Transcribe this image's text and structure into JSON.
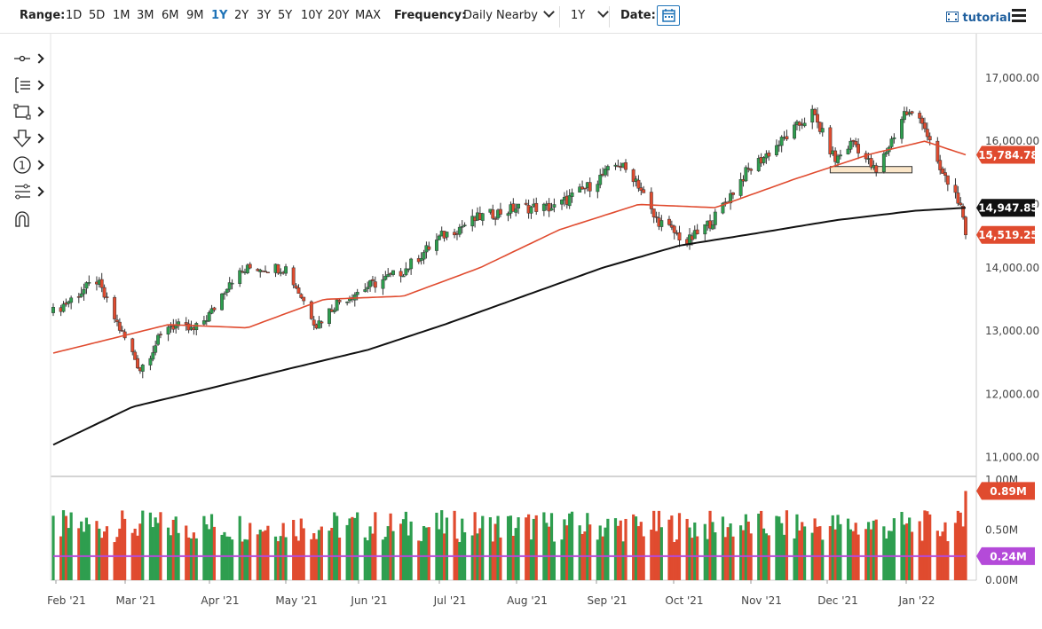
{
  "toolbar": {
    "range_label": "Range:",
    "ranges": [
      "1D",
      "5D",
      "1M",
      "3M",
      "6M",
      "9M",
      "1Y",
      "2Y",
      "3Y",
      "5Y",
      "10Y",
      "20Y",
      "MAX"
    ],
    "active_range": "1Y",
    "frequency_label": "Frequency:",
    "frequency_value": "Daily Nearby",
    "period_value": "1Y",
    "date_label": "Date:",
    "tutorial_label": "tutorial"
  },
  "tools": [
    "crosshair-icon",
    "trend-lines-icon",
    "shapes-icon",
    "arrow-down-icon",
    "counter-icon",
    "fibonacci-icon",
    "magnet-icon"
  ],
  "chart_data": {
    "type": "candlestick",
    "x_labels": [
      "Feb '21",
      "Mar '21",
      "Apr '21",
      "May '21",
      "Jun '21",
      "Jul '21",
      "Aug '21",
      "Sep '21",
      "Oct '21",
      "Nov '21",
      "Dec '21",
      "Jan '22"
    ],
    "price_axis": {
      "ylim": [
        10700,
        17700
      ],
      "ticks": [
        "17,000.00",
        "16,000.00",
        "15,000.00",
        "14,000.00",
        "13,000.00",
        "12,000.00",
        "11,000.00"
      ],
      "tick_values": [
        17000,
        16000,
        15000,
        14000,
        13000,
        12000,
        11000
      ]
    },
    "volume_axis": {
      "ylim": [
        0,
        1.0
      ],
      "ticks": [
        "1.00M",
        "0.50M",
        "0.00M"
      ],
      "tick_values": [
        1.0,
        0.5,
        0.0
      ]
    },
    "price_anchors": [
      [
        "2021-01-29",
        13300
      ],
      [
        "2021-02-05",
        13500
      ],
      [
        "2021-02-15",
        13800
      ],
      [
        "2021-02-22",
        13200
      ],
      [
        "2021-03-04",
        12400
      ],
      [
        "2021-03-15",
        13100
      ],
      [
        "2021-03-25",
        13000
      ],
      [
        "2021-04-01",
        13300
      ],
      [
        "2021-04-08",
        13800
      ],
      [
        "2021-04-16",
        14000
      ],
      [
        "2021-04-30",
        14000
      ],
      [
        "2021-05-12",
        13100
      ],
      [
        "2021-05-20",
        13450
      ],
      [
        "2021-06-01",
        13700
      ],
      [
        "2021-06-15",
        13950
      ],
      [
        "2021-06-30",
        14500
      ],
      [
        "2021-07-15",
        14800
      ],
      [
        "2021-07-30",
        14950
      ],
      [
        "2021-08-13",
        14950
      ],
      [
        "2021-08-27",
        15300
      ],
      [
        "2021-09-07",
        15650
      ],
      [
        "2021-09-14",
        15400
      ],
      [
        "2021-09-21",
        14800
      ],
      [
        "2021-10-04",
        14400
      ],
      [
        "2021-10-14",
        14750
      ],
      [
        "2021-10-27",
        15500
      ],
      [
        "2021-11-10",
        16000
      ],
      [
        "2021-11-22",
        16450
      ],
      [
        "2021-12-01",
        15700
      ],
      [
        "2021-12-08",
        16000
      ],
      [
        "2021-12-17",
        15500
      ],
      [
        "2021-12-28",
        16450
      ],
      [
        "2022-01-04",
        16350
      ],
      [
        "2022-01-10",
        15600
      ],
      [
        "2022-01-18",
        15100
      ],
      [
        "2022-01-21",
        14519
      ]
    ],
    "ma_50_anchors": [
      [
        "2021-01-29",
        12650
      ],
      [
        "2021-03-15",
        13100
      ],
      [
        "2021-04-15",
        13050
      ],
      [
        "2021-05-15",
        13500
      ],
      [
        "2021-06-15",
        13550
      ],
      [
        "2021-07-15",
        14000
      ],
      [
        "2021-08-15",
        14600
      ],
      [
        "2021-09-15",
        15000
      ],
      [
        "2021-10-15",
        14950
      ],
      [
        "2021-11-15",
        15400
      ],
      [
        "2021-12-15",
        15800
      ],
      [
        "2022-01-05",
        16000
      ],
      [
        "2022-01-21",
        15785
      ]
    ],
    "ma_200_anchors": [
      [
        "2021-01-29",
        11200
      ],
      [
        "2021-03-01",
        11800
      ],
      [
        "2021-04-01",
        12100
      ],
      [
        "2021-05-01",
        12400
      ],
      [
        "2021-06-01",
        12700
      ],
      [
        "2021-07-01",
        13100
      ],
      [
        "2021-08-01",
        13550
      ],
      [
        "2021-09-01",
        14000
      ],
      [
        "2021-10-01",
        14350
      ],
      [
        "2021-11-01",
        14550
      ],
      [
        "2021-12-01",
        14750
      ],
      [
        "2022-01-01",
        14900
      ],
      [
        "2022-01-21",
        14948
      ]
    ],
    "avg_volume": 0.24,
    "last_volume": 0.89,
    "support_zone": {
      "from": "2021-11-29",
      "to": "2021-12-31",
      "low": 15500,
      "high": 15600
    },
    "tags": [
      {
        "label": "15,784.78",
        "value": 15784.78,
        "color": "#e04b2f"
      },
      {
        "label": "14,947.85",
        "value": 14947.85,
        "color": "#111111"
      },
      {
        "label": "14,519.25",
        "value": 14519.25,
        "color": "#e04b2f"
      }
    ],
    "volume_tags": [
      {
        "label": "0.89M",
        "value": 0.89,
        "color": "#e04b2f"
      },
      {
        "label": "0.24M",
        "value": 0.24,
        "color": "#b44ad9"
      }
    ],
    "colors": {
      "up": "#2e9e4f",
      "down": "#e04b2f",
      "ma_50": "#e04b2f",
      "ma_200": "#111111",
      "avg_volume": "#b44ad9",
      "zone_fill": "#fbe6c8"
    }
  }
}
